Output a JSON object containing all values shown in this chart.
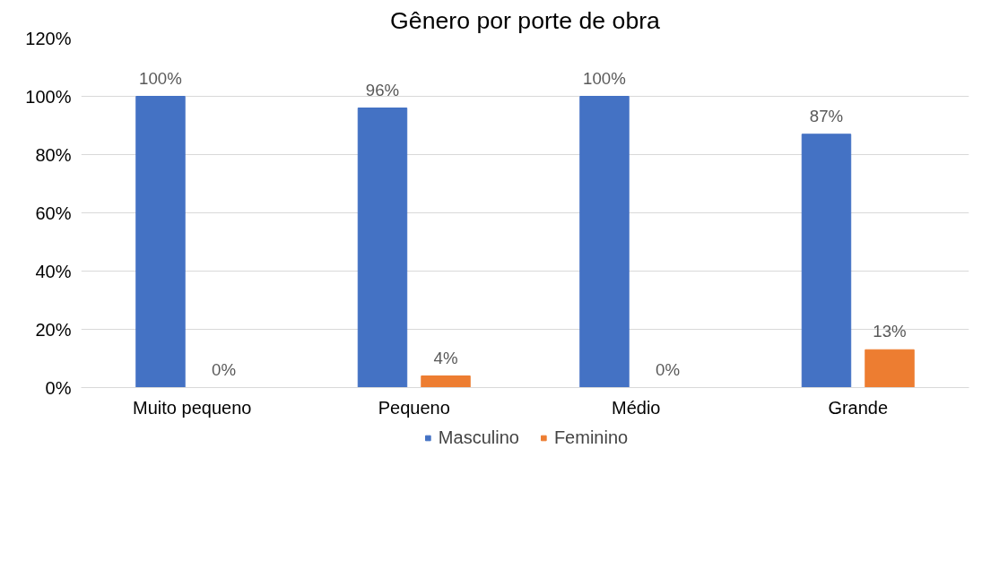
{
  "chart_data": {
    "type": "bar",
    "title": "Gênero por porte de obra",
    "categories": [
      "Muito pequeno",
      "Pequeno",
      "Médio",
      "Grande"
    ],
    "series": [
      {
        "name": "Masculino",
        "color": "#4472c4",
        "values": [
          100,
          96,
          100,
          87
        ],
        "value_labels": [
          "100%",
          "96%",
          "100%",
          "87%"
        ]
      },
      {
        "name": "Feminino",
        "color": "#ed7d31",
        "values": [
          0,
          4,
          0,
          13
        ],
        "value_labels": [
          "0%",
          "4%",
          "0%",
          "13%"
        ]
      }
    ],
    "ylim": [
      0,
      120
    ],
    "yticks": [
      {
        "value": 0,
        "label": "0%"
      },
      {
        "value": 20,
        "label": "20%"
      },
      {
        "value": 40,
        "label": "40%"
      },
      {
        "value": 60,
        "label": "60%"
      },
      {
        "value": 80,
        "label": "80%"
      },
      {
        "value": 100,
        "label": "100%"
      },
      {
        "value": 120,
        "label": "120%"
      }
    ],
    "grid": "y",
    "legend": "bottom"
  }
}
